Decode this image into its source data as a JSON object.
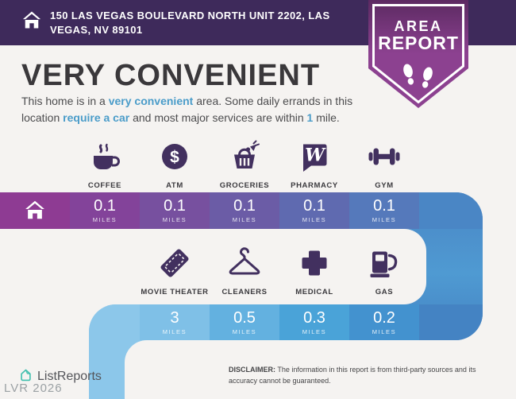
{
  "header": {
    "address": "150 LAS VEGAS BOULEVARD NORTH UNIT 2202, LAS VEGAS, NV 89101"
  },
  "badge": {
    "line1": "AREA",
    "line2": "REPORT"
  },
  "title": "VERY CONVENIENT",
  "description": {
    "segments": [
      {
        "t": "This home is in a "
      },
      {
        "t": "very convenient",
        "hl": true
      },
      {
        "t": " area. Some daily errands in this",
        "br": true
      },
      {
        "t": "location "
      },
      {
        "t": "require a car",
        "hl": true
      },
      {
        "t": " and most major services are within "
      },
      {
        "t": "1",
        "hl": true
      },
      {
        "t": " mile."
      }
    ]
  },
  "rows": {
    "row1": {
      "items": [
        {
          "icon": "coffee-icon",
          "label": "COFFEE",
          "distance": "0.1",
          "unit": "MILES"
        },
        {
          "icon": "atm-icon",
          "label": "ATM",
          "distance": "0.1",
          "unit": "MILES"
        },
        {
          "icon": "groceries-icon",
          "label": "GROCERIES",
          "distance": "0.1",
          "unit": "MILES"
        },
        {
          "icon": "pharmacy-icon",
          "label": "PHARMACY",
          "distance": "0.1",
          "unit": "MILES"
        },
        {
          "icon": "gym-icon",
          "label": "GYM",
          "distance": "0.1",
          "unit": "MILES"
        }
      ]
    },
    "row2": {
      "items": [
        {
          "icon": "movie-ticket-icon",
          "label": "MOVIE THEATER",
          "distance": "3",
          "unit": "MILES"
        },
        {
          "icon": "hanger-icon",
          "label": "CLEANERS",
          "distance": "0.5",
          "unit": "MILES"
        },
        {
          "icon": "medical-cross-icon",
          "label": "MEDICAL",
          "distance": "0.3",
          "unit": "MILES"
        },
        {
          "icon": "gas-pump-icon",
          "label": "GAS",
          "distance": "0.2",
          "unit": "MILES"
        }
      ]
    }
  },
  "footer": {
    "brand": "ListReports",
    "watermark": "LVR 2026",
    "disclaimer_label": "DISCLAIMER:",
    "disclaimer_text": "The information in this report is from third-party sources and its accuracy cannot be guaranteed."
  },
  "colors": {
    "header_purple": "#3e2a5b",
    "badge_purple": "#8c4190",
    "badge_purple_dark": "#5c2a62",
    "accent_blue": "#4a9cc9",
    "icon_purple": "#42305f",
    "bar1_home": "#8e3b93",
    "bar1_segments": [
      "#83439a",
      "#77509f",
      "#6b5ca6",
      "#5f6ab0",
      "#5579bb"
    ],
    "bar1_tail": "#4a86c5",
    "bar2_stub": "#8cc7ea",
    "bar2_segments": [
      "#7fc0e7",
      "#63b1e0",
      "#4aa3d8",
      "#4392cf"
    ],
    "bar2_tail": "#4483c3",
    "brand_teal": "#41bfae"
  }
}
